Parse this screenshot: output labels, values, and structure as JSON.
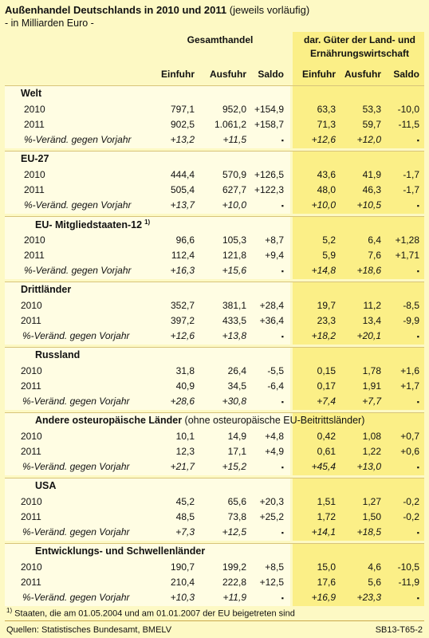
{
  "title_bold": "Außenhandel Deutschlands in 2010 und 2011",
  "title_rest": " (jeweils vorläufig)",
  "subtitle": "- in Milliarden Euro -",
  "header": {
    "group_left": "Gesamthandel",
    "group_right": "dar. Güter der Land- und Ernährungswirtschaft",
    "cols": [
      "Einfuhr",
      "Ausfuhr",
      "Saldo",
      "Einfuhr",
      "Ausfuhr",
      "Saldo"
    ]
  },
  "sections": [
    {
      "title": "Welt",
      "title_note": "",
      "rows": [
        {
          "label": "2010",
          "vals": [
            "797,1",
            "952,0",
            "+154,9",
            "63,3",
            "53,3",
            "-10,0"
          ]
        },
        {
          "label": "2011",
          "vals": [
            "902,5",
            "1.061,2",
            "+158,7",
            "71,3",
            "59,7",
            "-11,5"
          ]
        },
        {
          "label": "%-Veränd. gegen Vorjahr",
          "vals": [
            "+13,2",
            "+11,5",
            "▪",
            "+12,6",
            "+12,0",
            "▪"
          ]
        }
      ]
    },
    {
      "title": "EU-27",
      "title_note": "",
      "rows": [
        {
          "label": "2010",
          "vals": [
            "444,4",
            "570,9",
            "+126,5",
            "43,6",
            "41,9",
            "-1,7"
          ]
        },
        {
          "label": "2011",
          "vals": [
            "505,4",
            "627,7",
            "+122,3",
            "48,0",
            "46,3",
            "-1,7"
          ]
        },
        {
          "label": "%-Veränd. gegen Vorjahr",
          "vals": [
            "+13,7",
            "+10,0",
            "▪",
            "+10,0",
            "+10,5",
            "▪"
          ]
        }
      ]
    },
    {
      "title": "EU- Mitgliedstaaten-12",
      "title_note": "1)",
      "rows": [
        {
          "label": "2010",
          "vals": [
            "96,6",
            "105,3",
            "+8,7",
            "5,2",
            "6,4",
            "+1,28"
          ]
        },
        {
          "label": "2011",
          "vals": [
            "112,4",
            "121,8",
            "+9,4",
            "5,9",
            "7,6",
            "+1,71"
          ]
        },
        {
          "label": "%-Veränd. gegen Vorjahr",
          "vals": [
            "+16,3",
            "+15,6",
            "▪",
            "+14,8",
            "+18,6",
            "▪"
          ]
        }
      ]
    },
    {
      "title": "Drittländer",
      "title_note": "",
      "rows": [
        {
          "label": "2010",
          "vals": [
            "352,7",
            "381,1",
            "+28,4",
            "19,7",
            "11,2",
            "-8,5"
          ]
        },
        {
          "label": "2011",
          "vals": [
            "397,2",
            "433,5",
            "+36,4",
            "23,3",
            "13,4",
            "-9,9"
          ]
        },
        {
          "label": "%-Veränd. gegen Vorjahr",
          "vals": [
            "+12,6",
            "+13,8",
            "▪",
            "+18,2",
            "+20,1",
            "▪"
          ]
        }
      ]
    },
    {
      "title": "Russland",
      "title_note": "",
      "rows": [
        {
          "label": "2010",
          "vals": [
            "31,8",
            "26,4",
            "-5,5",
            "0,15",
            "1,78",
            "+1,6"
          ]
        },
        {
          "label": "2011",
          "vals": [
            "40,9",
            "34,5",
            "-6,4",
            "0,17",
            "1,91",
            "+1,7"
          ]
        },
        {
          "label": "%-Veränd. gegen Vorjahr",
          "vals": [
            "+28,6",
            "+30,8",
            "▪",
            "+7,4",
            "+7,7",
            "▪"
          ]
        }
      ]
    },
    {
      "title": "Andere osteuropäische Länder",
      "title_extra": " (ohne osteuropäische EU-Beitrittsländer)",
      "title_note": "",
      "rows": [
        {
          "label": "2010",
          "vals": [
            "10,1",
            "14,9",
            "+4,8",
            "0,42",
            "1,08",
            "+0,7"
          ]
        },
        {
          "label": "2011",
          "vals": [
            "12,3",
            "17,1",
            "+4,9",
            "0,61",
            "1,22",
            "+0,6"
          ]
        },
        {
          "label": "%-Veränd. gegen Vorjahr",
          "vals": [
            "+21,7",
            "+15,2",
            "▪",
            "+45,4",
            "+13,0",
            "▪"
          ]
        }
      ]
    },
    {
      "title": "USA",
      "title_note": "",
      "rows": [
        {
          "label": "2010",
          "vals": [
            "45,2",
            "65,6",
            "+20,3",
            "1,51",
            "1,27",
            "-0,2"
          ]
        },
        {
          "label": "2011",
          "vals": [
            "48,5",
            "73,8",
            "+25,2",
            "1,72",
            "1,50",
            "-0,2"
          ]
        },
        {
          "label": "%-Veränd. gegen Vorjahr",
          "vals": [
            "+7,3",
            "+12,5",
            "▪",
            "+14,1",
            "+18,5",
            "▪"
          ]
        }
      ]
    },
    {
      "title": "Entwicklungs- und Schwellenländer",
      "title_note": "",
      "rows": [
        {
          "label": "2010",
          "vals": [
            "190,7",
            "199,2",
            "+8,5",
            "15,0",
            "4,6",
            "-10,5"
          ]
        },
        {
          "label": "2011",
          "vals": [
            "210,4",
            "222,8",
            "+12,5",
            "17,6",
            "5,6",
            "-11,9"
          ]
        },
        {
          "label": "%-Veränd. gegen Vorjahr",
          "vals": [
            "+10,3",
            "+11,9",
            "▪",
            "+16,9",
            "+23,3",
            "▪"
          ]
        }
      ]
    }
  ],
  "footnote_mark": "1)",
  "footnote": " Staaten, die am 01.05.2004 und am 01.01.2007 der EU beigetreten sind",
  "source": "Quellen: Statistisches Bundesamt, BMELV",
  "code": "SB13-T65-2"
}
